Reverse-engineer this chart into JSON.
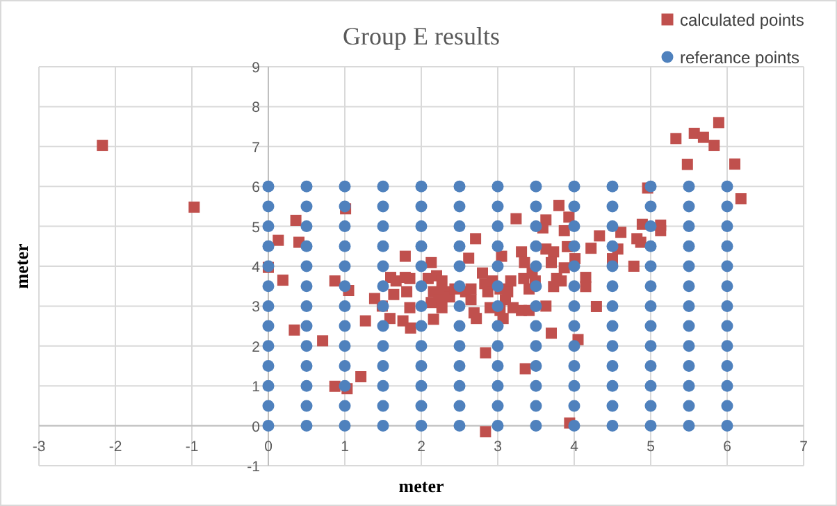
{
  "chart_data": {
    "type": "scatter",
    "title": "Group E results",
    "xlabel": "meter",
    "ylabel": "meter",
    "xlim": [
      -3,
      7
    ],
    "ylim": [
      -1,
      9
    ],
    "xticks": [
      -3,
      -2,
      -1,
      0,
      1,
      2,
      3,
      4,
      5,
      6,
      7
    ],
    "yticks": [
      -1,
      0,
      1,
      2,
      3,
      4,
      5,
      6,
      7,
      8,
      9
    ],
    "grid": true,
    "legend": "top right",
    "series": [
      {
        "name": "calculated points",
        "color": "#c0504d",
        "marker": "square",
        "x": [
          -2.17,
          -0.97,
          0,
          0.13,
          0.19,
          0.36,
          0.4,
          0.34,
          0.71,
          0.87,
          0.87,
          1.03,
          1.01,
          1.05,
          1.21,
          1.27,
          1.39,
          1.49,
          1.6,
          1.67,
          1.64,
          1.59,
          1.76,
          1.79,
          1.85,
          1.81,
          1.85,
          1.86,
          1.79,
          2.13,
          2.16,
          2.09,
          2.2,
          2.27,
          2.16,
          2.3,
          2.23,
          2.13,
          2.27,
          2.37,
          2.44,
          2.62,
          2.71,
          2.58,
          2.65,
          2.69,
          2.72,
          2.65,
          2.8,
          2.83,
          2.87,
          2.84,
          2.84,
          2.93,
          2.9,
          3.03,
          3.03,
          3.07,
          3.1,
          3.13,
          3.17,
          3.2,
          3.05,
          3.24,
          3.31,
          3.35,
          3.34,
          3.31,
          3.41,
          3.45,
          3.49,
          3.41,
          3.36,
          3.63,
          3.59,
          3.63,
          3.73,
          3.7,
          3.77,
          3.73,
          3.63,
          3.7,
          3.8,
          3.93,
          3.87,
          3.91,
          3.87,
          3.83,
          4.01,
          4.15,
          4.15,
          4.05,
          3.94,
          4.22,
          4.33,
          4.29,
          4.5,
          4.57,
          4.61,
          4.78,
          4.82,
          4.89,
          4.87,
          4.96,
          5.13,
          5.13,
          5.33,
          5.48,
          5.57,
          5.69,
          5.83,
          5.89,
          6.1,
          6.18
        ],
        "values": [
          7.03,
          5.48,
          3.97,
          4.65,
          3.65,
          5.15,
          4.6,
          2.4,
          2.13,
          3.63,
          0.99,
          0.93,
          5.44,
          3.39,
          1.23,
          2.63,
          3.19,
          3.0,
          3.72,
          3.63,
          3.29,
          2.69,
          2.63,
          3.72,
          3.69,
          3.36,
          2.96,
          2.45,
          4.25,
          4.09,
          2.67,
          3.69,
          3.76,
          3.63,
          3.36,
          3.36,
          3.16,
          3.09,
          2.96,
          3.23,
          3.43,
          4.2,
          4.69,
          3.36,
          3.43,
          2.83,
          2.69,
          3.16,
          3.83,
          3.56,
          3.36,
          1.83,
          -0.15,
          3.63,
          2.96,
          3.43,
          2.89,
          2.69,
          3.16,
          3.36,
          3.63,
          2.96,
          4.25,
          5.19,
          4.36,
          4.09,
          3.69,
          2.89,
          3.43,
          3.83,
          3.63,
          2.89,
          1.43,
          5.16,
          4.96,
          4.43,
          4.36,
          4.09,
          3.69,
          3.49,
          3.0,
          2.32,
          5.52,
          5.23,
          4.89,
          4.49,
          3.96,
          3.63,
          4.19,
          3.72,
          3.49,
          2.16,
          0.07,
          4.45,
          4.76,
          2.99,
          4.19,
          4.43,
          4.85,
          4.0,
          4.69,
          5.05,
          4.6,
          5.96,
          5.03,
          4.89,
          7.2,
          6.55,
          7.33,
          7.23,
          7.03,
          7.6,
          6.56,
          5.69
        ]
      },
      {
        "name": "referance points",
        "color": "#4f81bd",
        "marker": "circle",
        "x": [
          0,
          0,
          0,
          0,
          0,
          0,
          0,
          0,
          0,
          0,
          0,
          0,
          0,
          0.5,
          0.5,
          0.5,
          0.5,
          0.5,
          0.5,
          0.5,
          0.5,
          0.5,
          0.5,
          0.5,
          0.5,
          0.5,
          1,
          1,
          1,
          1,
          1,
          1,
          1,
          1,
          1,
          1,
          1,
          1,
          1,
          1.5,
          1.5,
          1.5,
          1.5,
          1.5,
          1.5,
          1.5,
          1.5,
          1.5,
          1.5,
          1.5,
          1.5,
          1.5,
          2,
          2,
          2,
          2,
          2,
          2,
          2,
          2,
          2,
          2,
          2,
          2,
          2,
          2.5,
          2.5,
          2.5,
          2.5,
          2.5,
          2.5,
          2.5,
          2.5,
          2.5,
          2.5,
          2.5,
          2.5,
          2.5,
          3,
          3,
          3,
          3,
          3,
          3,
          3,
          3,
          3,
          3,
          3,
          3,
          3,
          3.5,
          3.5,
          3.5,
          3.5,
          3.5,
          3.5,
          3.5,
          3.5,
          3.5,
          3.5,
          3.5,
          3.5,
          3.5,
          4,
          4,
          4,
          4,
          4,
          4,
          4,
          4,
          4,
          4,
          4,
          4,
          4,
          4.5,
          4.5,
          4.5,
          4.5,
          4.5,
          4.5,
          4.5,
          4.5,
          4.5,
          4.5,
          4.5,
          4.5,
          4.5,
          5,
          5,
          5,
          5,
          5,
          5,
          5,
          5,
          5,
          5,
          5,
          5,
          5,
          5.5,
          5.5,
          5.5,
          5.5,
          5.5,
          5.5,
          5.5,
          5.5,
          5.5,
          5.5,
          5.5,
          5.5,
          5.5,
          6,
          6,
          6,
          6,
          6,
          6,
          6,
          6,
          6,
          6,
          6,
          6,
          6
        ],
        "values": [
          0,
          0.5,
          1,
          1.5,
          2,
          2.5,
          3,
          3.5,
          4,
          4.5,
          5,
          5.5,
          6,
          0,
          0.5,
          1,
          1.5,
          2,
          2.5,
          3,
          3.5,
          4,
          4.5,
          5,
          5.5,
          6,
          0,
          0.5,
          1,
          1.5,
          2,
          2.5,
          3,
          3.5,
          4,
          4.5,
          5,
          5.5,
          6,
          0,
          0.5,
          1,
          1.5,
          2,
          2.5,
          3,
          3.5,
          4,
          4.5,
          5,
          5.5,
          6,
          0,
          0.5,
          1,
          1.5,
          2,
          2.5,
          3,
          3.5,
          4,
          4.5,
          5,
          5.5,
          6,
          0,
          0.5,
          1,
          1.5,
          2,
          2.5,
          3,
          3.5,
          4,
          4.5,
          5,
          5.5,
          6,
          0,
          0.5,
          1,
          1.5,
          2,
          2.5,
          3,
          3.5,
          4,
          4.5,
          5,
          5.5,
          6,
          0,
          0.5,
          1,
          1.5,
          2,
          2.5,
          3,
          3.5,
          4,
          4.5,
          5,
          5.5,
          6,
          0,
          0.5,
          1,
          1.5,
          2,
          2.5,
          3,
          3.5,
          4,
          4.5,
          5,
          5.5,
          6,
          0,
          0.5,
          1,
          1.5,
          2,
          2.5,
          3,
          3.5,
          4,
          4.5,
          5,
          5.5,
          6,
          0,
          0.5,
          1,
          1.5,
          2,
          2.5,
          3,
          3.5,
          4,
          4.5,
          5,
          5.5,
          6,
          0,
          0.5,
          1,
          1.5,
          2,
          2.5,
          3,
          3.5,
          4,
          4.5,
          5,
          5.5,
          6,
          0,
          0.5,
          1,
          1.5,
          2,
          2.5,
          3,
          3.5,
          4,
          4.5,
          5,
          5.5,
          6
        ]
      }
    ]
  }
}
